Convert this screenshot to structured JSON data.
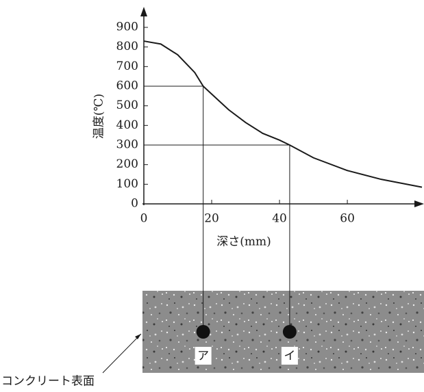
{
  "chart_data": {
    "type": "line",
    "x_label": "深さ(mm)",
    "y_label": "温度(℃)",
    "series": [
      {
        "color": "#1a1a1a",
        "x": [
          0,
          5,
          10,
          15,
          17.5,
          20,
          25,
          30,
          35,
          40,
          43,
          50,
          60,
          70,
          82
        ],
        "values": [
          830,
          815,
          760,
          670,
          600,
          560,
          480,
          415,
          360,
          325,
          300,
          235,
          170,
          125,
          85
        ]
      }
    ],
    "xlim": [
      0,
      82
    ],
    "xticks": [
      0,
      20,
      40,
      60
    ],
    "ylim": [
      0,
      900
    ],
    "yticks": [
      0,
      100,
      200,
      300,
      400,
      500,
      600,
      700,
      800,
      900
    ],
    "markers": [
      {
        "label": "ア",
        "x": 17.5,
        "y": 600
      },
      {
        "label": "イ",
        "x": 43,
        "y": 300
      }
    ],
    "surface_label": "コンクリート表面"
  }
}
